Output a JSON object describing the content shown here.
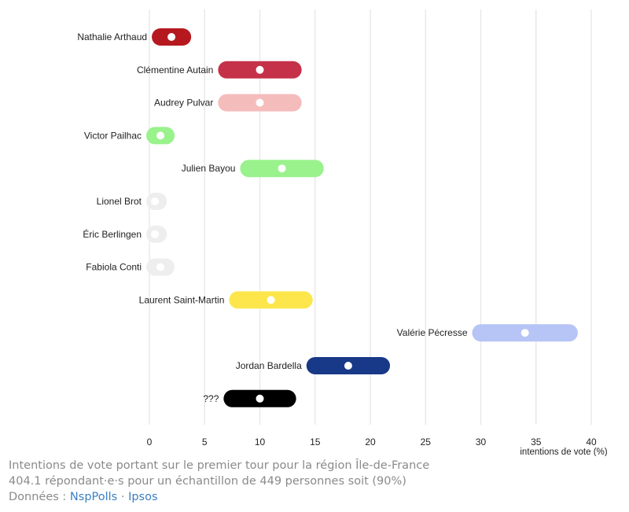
{
  "chart_data": {
    "type": "range-dot",
    "xlabel": "intentions de vote (%)",
    "xlim": [
      0,
      40
    ],
    "xticks": [
      0,
      5,
      10,
      15,
      20,
      25,
      30,
      35,
      40
    ],
    "grid": true,
    "candidates": [
      {
        "name": "Nathalie Arthaud",
        "low": 1,
        "high": 3,
        "value": 2,
        "color": "#b5191f",
        "dot": "#ffffff"
      },
      {
        "name": "Clémentine Autain",
        "low": 7,
        "high": 13,
        "value": 10,
        "color": "#c53149",
        "dot": "#ffffff"
      },
      {
        "name": "Audrey Pulvar",
        "low": 7,
        "high": 13,
        "value": 10,
        "color": "#f5bcbc",
        "dot": "#ffffff"
      },
      {
        "name": "Victor Pailhac",
        "low": 0.5,
        "high": 1.5,
        "value": 1,
        "color": "#99f28c",
        "dot": "#ffffff"
      },
      {
        "name": "Julien Bayou",
        "low": 9,
        "high": 15,
        "value": 12,
        "color": "#99f28c",
        "dot": "#ffffff"
      },
      {
        "name": "Lionel Brot",
        "low": 0.5,
        "high": 0.8,
        "value": 0.5,
        "color": "#eeeeee",
        "dot": "#ffffff"
      },
      {
        "name": "Éric Berlingen",
        "low": 0.5,
        "high": 0.8,
        "value": 0.5,
        "color": "#eeeeee",
        "dot": "#ffffff"
      },
      {
        "name": "Fabiola Conti",
        "low": 0.5,
        "high": 1.5,
        "value": 1,
        "color": "#eeeeee",
        "dot": "#ffffff"
      },
      {
        "name": "Laurent Saint-Martin",
        "low": 8,
        "high": 14,
        "value": 11,
        "color": "#fce64c",
        "dot": "#ffffff"
      },
      {
        "name": "Valérie Pécresse",
        "low": 30,
        "high": 38,
        "value": 34,
        "color": "#b6c4f6",
        "dot": "#ffffff"
      },
      {
        "name": "Jordan Bardella",
        "low": 15,
        "high": 21,
        "value": 18,
        "color": "#183987",
        "dot": "#ffffff"
      },
      {
        "name": "???",
        "low": 7.5,
        "high": 12.5,
        "value": 10,
        "color": "#000000",
        "dot": "#ffffff"
      }
    ]
  },
  "caption": {
    "line1": "Intentions de vote portant sur le premier tour pour la région Île-de-France",
    "line2": "404.1 répondant·e·s pour un échantillon de 449 personnes soit (90%)",
    "source_prefix": "Données : ",
    "source_link1": "NspPolls",
    "source_sep": " · ",
    "source_link2": "Ipsos"
  }
}
